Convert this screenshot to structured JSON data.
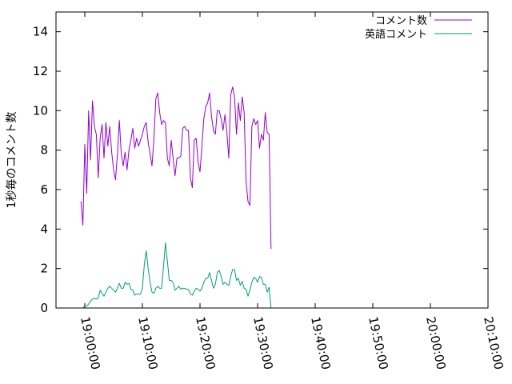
{
  "chart_data": {
    "type": "line",
    "ylabel": "1秒毎のコメント数",
    "ylim": [
      0,
      15
    ],
    "yticks": [
      0,
      2,
      4,
      6,
      8,
      10,
      12,
      14
    ],
    "xlim_seconds": [
      68100,
      72600
    ],
    "xticks": [
      {
        "label": "19:00:00",
        "t": 68400
      },
      {
        "label": "19:10:00",
        "t": 69000
      },
      {
        "label": "19:20:00",
        "t": 69600
      },
      {
        "label": "19:30:00",
        "t": 70200
      },
      {
        "label": "19:40:00",
        "t": 70800
      },
      {
        "label": "19:50:00",
        "t": 71400
      },
      {
        "label": "20:00:00",
        "t": 72000
      },
      {
        "label": "20:10:00",
        "t": 72600
      }
    ],
    "legend_position": "top-right",
    "series": [
      {
        "name": "コメント数",
        "color": "#9400d3",
        "points": [
          [
            "18:59:20",
            5.4
          ],
          [
            "18:59:40",
            4.2
          ],
          [
            "19:00:00",
            8.3
          ],
          [
            "19:00:20",
            5.8
          ],
          [
            "19:00:40",
            10.0
          ],
          [
            "19:01:00",
            7.5
          ],
          [
            "19:01:20",
            10.5
          ],
          [
            "19:01:40",
            9.2
          ],
          [
            "19:02:00",
            8.8
          ],
          [
            "19:02:20",
            6.6
          ],
          [
            "19:02:40",
            8.6
          ],
          [
            "19:03:00",
            9.3
          ],
          [
            "19:03:20",
            7.6
          ],
          [
            "19:03:40",
            9.4
          ],
          [
            "19:04:00",
            8.2
          ],
          [
            "19:04:20",
            9.2
          ],
          [
            "19:04:40",
            7.9
          ],
          [
            "19:05:00",
            7.0
          ],
          [
            "19:05:20",
            6.5
          ],
          [
            "19:05:40",
            7.8
          ],
          [
            "19:06:00",
            9.5
          ],
          [
            "19:06:20",
            7.8
          ],
          [
            "19:06:40",
            7.2
          ],
          [
            "19:07:00",
            7.9
          ],
          [
            "19:07:20",
            7.0
          ],
          [
            "19:07:40",
            8.0
          ],
          [
            "19:08:00",
            8.5
          ],
          [
            "19:08:20",
            9.1
          ],
          [
            "19:08:40",
            8.1
          ],
          [
            "19:09:00",
            8.6
          ],
          [
            "19:09:20",
            8.2
          ],
          [
            "19:09:40",
            8.5
          ],
          [
            "19:10:00",
            8.8
          ],
          [
            "19:10:20",
            9.2
          ],
          [
            "19:10:40",
            9.4
          ],
          [
            "19:11:00",
            8.4
          ],
          [
            "19:11:20",
            7.8
          ],
          [
            "19:11:40",
            7.2
          ],
          [
            "19:12:00",
            8.6
          ],
          [
            "19:12:20",
            10.6
          ],
          [
            "19:12:40",
            10.9
          ],
          [
            "19:13:00",
            9.9
          ],
          [
            "19:13:20",
            9.3
          ],
          [
            "19:13:40",
            9.5
          ],
          [
            "19:14:00",
            9.4
          ],
          [
            "19:14:20",
            7.6
          ],
          [
            "19:14:40",
            7.2
          ],
          [
            "19:15:00",
            8.5
          ],
          [
            "19:15:20",
            7.6
          ],
          [
            "19:15:40",
            6.7
          ],
          [
            "19:16:00",
            7.6
          ],
          [
            "19:16:20",
            7.6
          ],
          [
            "19:16:40",
            7.7
          ],
          [
            "19:17:00",
            9.1
          ],
          [
            "19:17:20",
            9.2
          ],
          [
            "19:17:40",
            9.0
          ],
          [
            "19:18:00",
            9.0
          ],
          [
            "19:18:20",
            6.6
          ],
          [
            "19:18:40",
            6.1
          ],
          [
            "19:19:00",
            8.5
          ],
          [
            "19:19:20",
            8.6
          ],
          [
            "19:19:40",
            7.4
          ],
          [
            "19:20:00",
            6.9
          ],
          [
            "19:20:20",
            8.2
          ],
          [
            "19:20:40",
            9.6
          ],
          [
            "19:21:00",
            10.2
          ],
          [
            "19:21:20",
            10.4
          ],
          [
            "19:21:40",
            10.9
          ],
          [
            "19:22:00",
            9.7
          ],
          [
            "19:22:20",
            9.0
          ],
          [
            "19:22:40",
            8.8
          ],
          [
            "19:23:00",
            10.0
          ],
          [
            "19:23:20",
            10.0
          ],
          [
            "19:23:40",
            9.6
          ],
          [
            "19:24:00",
            9.0
          ],
          [
            "19:24:20",
            9.8
          ],
          [
            "19:24:40",
            8.9
          ],
          [
            "19:25:00",
            7.6
          ],
          [
            "19:25:20",
            10.8
          ],
          [
            "19:25:40",
            11.2
          ],
          [
            "19:26:00",
            10.7
          ],
          [
            "19:26:20",
            8.8
          ],
          [
            "19:26:40",
            10.4
          ],
          [
            "19:27:00",
            9.5
          ],
          [
            "19:27:20",
            10.7
          ],
          [
            "19:27:40",
            9.9
          ],
          [
            "19:28:00",
            6.4
          ],
          [
            "19:28:20",
            5.4
          ],
          [
            "19:28:40",
            5.2
          ],
          [
            "19:29:00",
            9.2
          ],
          [
            "19:29:20",
            9.6
          ],
          [
            "19:29:40",
            9.3
          ],
          [
            "19:30:00",
            9.5
          ],
          [
            "19:30:20",
            8.1
          ],
          [
            "19:30:40",
            8.8
          ],
          [
            "19:31:00",
            8.5
          ],
          [
            "19:31:20",
            9.9
          ],
          [
            "19:31:40",
            8.9
          ],
          [
            "19:32:00",
            8.8
          ],
          [
            "19:32:20",
            3.0
          ]
        ]
      },
      {
        "name": "英語コメント",
        "color": "#009e73",
        "points": [
          [
            "18:59:20",
            0.0
          ],
          [
            "18:59:40",
            0.0
          ],
          [
            "19:00:00",
            0.1
          ],
          [
            "19:00:20",
            0.1
          ],
          [
            "19:00:40",
            0.2
          ],
          [
            "19:01:00",
            0.35
          ],
          [
            "19:01:20",
            0.45
          ],
          [
            "19:01:40",
            0.5
          ],
          [
            "19:02:00",
            0.45
          ],
          [
            "19:02:20",
            0.5
          ],
          [
            "19:02:40",
            0.9
          ],
          [
            "19:03:00",
            0.75
          ],
          [
            "19:03:20",
            0.6
          ],
          [
            "19:03:40",
            0.8
          ],
          [
            "19:04:00",
            1.0
          ],
          [
            "19:04:20",
            1.1
          ],
          [
            "19:04:40",
            1.0
          ],
          [
            "19:05:00",
            0.9
          ],
          [
            "19:05:20",
            0.8
          ],
          [
            "19:05:40",
            1.0
          ],
          [
            "19:06:00",
            1.25
          ],
          [
            "19:06:20",
            1.0
          ],
          [
            "19:06:40",
            1.0
          ],
          [
            "19:07:00",
            1.3
          ],
          [
            "19:07:20",
            1.2
          ],
          [
            "19:07:40",
            1.25
          ],
          [
            "19:08:00",
            0.95
          ],
          [
            "19:08:20",
            0.9
          ],
          [
            "19:08:40",
            0.65
          ],
          [
            "19:09:00",
            0.7
          ],
          [
            "19:09:20",
            0.7
          ],
          [
            "19:09:40",
            0.7
          ],
          [
            "19:10:00",
            1.0
          ],
          [
            "19:10:20",
            2.2
          ],
          [
            "19:10:40",
            2.9
          ],
          [
            "19:11:00",
            2.0
          ],
          [
            "19:11:20",
            1.3
          ],
          [
            "19:11:40",
            0.8
          ],
          [
            "19:12:00",
            0.75
          ],
          [
            "19:12:20",
            1.0
          ],
          [
            "19:12:40",
            1.1
          ],
          [
            "19:13:00",
            1.0
          ],
          [
            "19:13:20",
            1.0
          ],
          [
            "19:13:40",
            2.1
          ],
          [
            "19:14:00",
            3.3
          ],
          [
            "19:14:20",
            2.4
          ],
          [
            "19:14:40",
            1.4
          ],
          [
            "19:15:00",
            1.4
          ],
          [
            "19:15:20",
            1.3
          ],
          [
            "19:15:40",
            0.9
          ],
          [
            "19:16:00",
            1.0
          ],
          [
            "19:16:20",
            1.1
          ],
          [
            "19:16:40",
            0.95
          ],
          [
            "19:17:00",
            1.0
          ],
          [
            "19:17:20",
            1.0
          ],
          [
            "19:17:40",
            0.95
          ],
          [
            "19:18:00",
            0.95
          ],
          [
            "19:18:20",
            0.7
          ],
          [
            "19:18:40",
            0.65
          ],
          [
            "19:19:00",
            0.85
          ],
          [
            "19:19:20",
            1.0
          ],
          [
            "19:19:40",
            0.95
          ],
          [
            "19:20:00",
            0.85
          ],
          [
            "19:20:20",
            1.0
          ],
          [
            "19:20:40",
            1.3
          ],
          [
            "19:21:00",
            1.5
          ],
          [
            "19:21:20",
            1.5
          ],
          [
            "19:21:40",
            1.8
          ],
          [
            "19:22:00",
            1.4
          ],
          [
            "19:22:20",
            1.0
          ],
          [
            "19:22:40",
            1.2
          ],
          [
            "19:23:00",
            1.8
          ],
          [
            "19:23:20",
            1.9
          ],
          [
            "19:23:40",
            1.6
          ],
          [
            "19:24:00",
            1.2
          ],
          [
            "19:24:20",
            1.3
          ],
          [
            "19:24:40",
            1.2
          ],
          [
            "19:25:00",
            1.15
          ],
          [
            "19:25:20",
            1.6
          ],
          [
            "19:25:40",
            1.95
          ],
          [
            "19:26:00",
            1.95
          ],
          [
            "19:26:20",
            1.4
          ],
          [
            "19:26:40",
            1.5
          ],
          [
            "19:27:00",
            1.15
          ],
          [
            "19:27:20",
            1.35
          ],
          [
            "19:27:40",
            1.0
          ],
          [
            "19:28:00",
            0.95
          ],
          [
            "19:28:20",
            0.6
          ],
          [
            "19:28:40",
            0.9
          ],
          [
            "19:29:00",
            1.3
          ],
          [
            "19:29:20",
            1.55
          ],
          [
            "19:29:40",
            1.5
          ],
          [
            "19:30:00",
            1.3
          ],
          [
            "19:30:20",
            1.6
          ],
          [
            "19:30:40",
            1.55
          ],
          [
            "19:31:00",
            1.2
          ],
          [
            "19:31:20",
            1.2
          ],
          [
            "19:31:40",
            0.8
          ],
          [
            "19:32:00",
            1.05
          ],
          [
            "19:32:20",
            0.0
          ]
        ]
      }
    ]
  }
}
